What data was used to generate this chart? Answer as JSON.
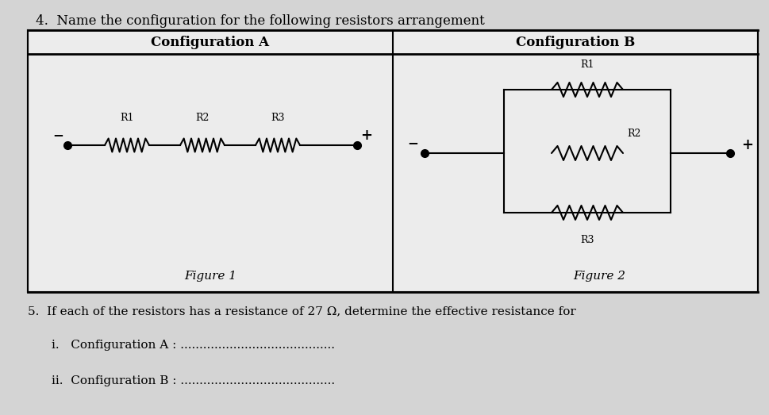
{
  "title": "4.  Name the configuration for the following resistors arrangement",
  "title_fontsize": 12,
  "bg_color": "#d8d8d8",
  "table_bg": "#e8e8e8",
  "header_bg": "#ffffff",
  "text_color": "#000000",
  "config_a_label": "Configuration A",
  "config_b_label": "Configuration B",
  "figure1_label": "Figure 1",
  "figure2_label": "Figure 2",
  "r1_label": "R1",
  "r2_label": "R2",
  "r3_label": "R3",
  "question5": "5.  If each of the resistors has a resistance of 27 Ω, determine the effective resistance for",
  "q_i": "i.   Configuration A : ",
  "q_ii": "ii.  Configuration B : ",
  "dots_i": ".........................................",
  "dots_ii": "........................................."
}
